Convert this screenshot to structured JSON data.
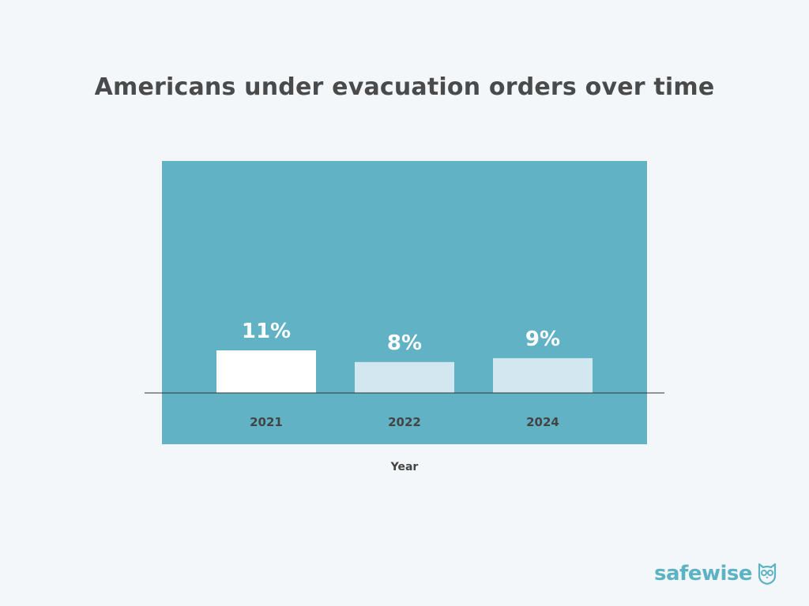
{
  "chart_data": {
    "type": "bar",
    "title": "Americans under evacuation orders over time",
    "categories": [
      "2021",
      "2022",
      "2024"
    ],
    "values": [
      11,
      8,
      9
    ],
    "value_labels": [
      "11%",
      "8%",
      "9%"
    ],
    "xlabel": "Year",
    "ylabel": "",
    "ylim": [
      0,
      60
    ],
    "grid": false,
    "colors": {
      "plot_background": "#60b2c4",
      "bar_highlight": "#ffffff",
      "bar_default": "#d2e7ef",
      "page_background": "#f3f7f9"
    }
  },
  "brand": {
    "name": "safewise",
    "logo_icon": "owl-icon"
  }
}
